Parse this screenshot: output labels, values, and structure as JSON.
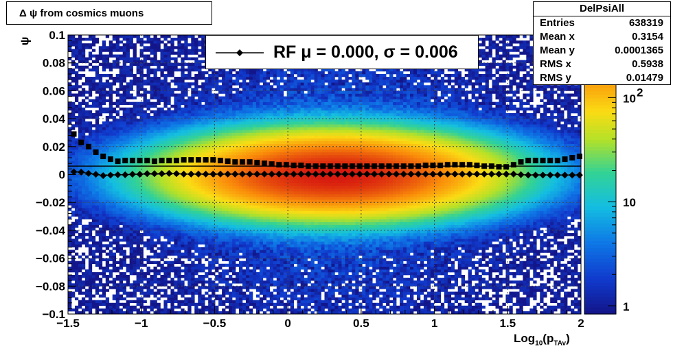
{
  "title_box": {
    "text": "Δ ψ from cosmics muons"
  },
  "stats": {
    "name": "DelPsiAll",
    "rows": [
      {
        "label": "Entries",
        "value": "638319"
      },
      {
        "label": "Mean x",
        "value": "0.3154"
      },
      {
        "label": "Mean y",
        "value": "0.0001365"
      },
      {
        "label": "RMS x",
        "value": "0.5938"
      },
      {
        "label": "RMS y",
        "value": "0.01479"
      }
    ]
  },
  "legend": {
    "text": "RF μ =  0.000, σ =   0.006"
  },
  "chart_data": {
    "type": "heatmap",
    "title": "Δ ψ from cosmics muons",
    "xlabel": "Log10(pTAv)",
    "ylabel": "ψ",
    "xlim": [
      -1.5,
      2
    ],
    "ylim": [
      -0.1,
      0.1
    ],
    "x_ticks": [
      "−1.5",
      "−1",
      "−0.5",
      "0",
      "0.5",
      "1",
      "1.5",
      "2"
    ],
    "x_tick_values": [
      -1.5,
      -1,
      -0.5,
      0,
      0.5,
      1,
      1.5,
      2
    ],
    "y_ticks": [
      "−0.1",
      "−0.08",
      "−0.06",
      "−0.04",
      "−0.02",
      "0",
      "0.02",
      "0.04",
      "0.06",
      "0.08",
      "0.1"
    ],
    "y_tick_values": [
      -0.1,
      -0.08,
      -0.06,
      -0.04,
      -0.02,
      0,
      0.02,
      0.04,
      0.06,
      0.08,
      0.1
    ],
    "grid": true,
    "colorbar": {
      "scale": "log",
      "range": [
        1,
        400
      ],
      "tick_labels": [
        "1",
        "10",
        "10^2"
      ],
      "tick_values": [
        1,
        10,
        100
      ]
    },
    "density": {
      "x_center": 0.3154,
      "y_rms": 0.01479,
      "peak": 400
    },
    "series": [
      {
        "name": "RF",
        "marker": "diamond",
        "x": [
          -1.46,
          -1.41,
          -1.36,
          -1.31,
          -1.26,
          -1.21,
          -1.16,
          -1.11,
          -1.06,
          -1.01,
          -0.96,
          -0.91,
          -0.86,
          -0.81,
          -0.76,
          -0.71,
          -0.66,
          -0.61,
          -0.56,
          -0.51,
          -0.46,
          -0.41,
          -0.36,
          -0.31,
          -0.26,
          -0.21,
          -0.16,
          -0.11,
          -0.06,
          -0.01,
          0.04,
          0.09,
          0.14,
          0.19,
          0.24,
          0.29,
          0.34,
          0.39,
          0.44,
          0.49,
          0.54,
          0.59,
          0.64,
          0.69,
          0.74,
          0.79,
          0.84,
          0.89,
          0.94,
          0.99,
          1.04,
          1.09,
          1.14,
          1.19,
          1.24,
          1.29,
          1.34,
          1.39,
          1.44,
          1.49,
          1.54,
          1.59,
          1.64,
          1.69,
          1.74,
          1.79,
          1.84,
          1.89,
          1.94,
          1.99
        ],
        "y": [
          0.0019,
          0.0017,
          0.0008,
          0.0001,
          -0.0008,
          -0.0004,
          -0.0002,
          -0.0002,
          0.0002,
          0.0002,
          0.0006,
          0.0006,
          0.0006,
          0.0008,
          0.0006,
          0.0003,
          0.0003,
          0.0003,
          0.0003,
          0.0003,
          0.0003,
          0.0003,
          0.0003,
          0.0003,
          0.0003,
          0.0003,
          0.0003,
          0.0003,
          0.0003,
          0.0003,
          0.0003,
          0.0003,
          0.0003,
          0.0003,
          0.0003,
          0.0003,
          0.0003,
          0.0003,
          0.0003,
          0.0003,
          0.0003,
          0.0003,
          0.0003,
          0.0003,
          0.0003,
          0.0003,
          0.0003,
          0.0003,
          0.0003,
          0.0003,
          0.0003,
          0.0003,
          0.0003,
          0.0003,
          0.0003,
          0.0003,
          0.0003,
          0.0003,
          0.0003,
          0.0003,
          0.0003,
          -0.0001,
          -0.0004,
          -0.0004,
          -0.0004,
          -0.0004,
          -0.0004,
          -0.0004,
          -0.0004,
          -0.0004
        ]
      },
      {
        "name": "",
        "marker": "square",
        "x": [
          -1.46,
          -1.41,
          -1.36,
          -1.31,
          -1.26,
          -1.21,
          -1.16,
          -1.11,
          -1.06,
          -1.01,
          -0.96,
          -0.91,
          -0.86,
          -0.81,
          -0.76,
          -0.71,
          -0.66,
          -0.61,
          -0.56,
          -0.51,
          -0.46,
          -0.41,
          -0.36,
          -0.31,
          -0.26,
          -0.21,
          -0.16,
          -0.11,
          -0.06,
          -0.01,
          0.04,
          0.09,
          0.14,
          0.19,
          0.24,
          0.29,
          0.34,
          0.39,
          0.44,
          0.49,
          0.54,
          0.59,
          0.64,
          0.69,
          0.74,
          0.79,
          0.84,
          0.89,
          0.94,
          0.99,
          1.04,
          1.09,
          1.14,
          1.19,
          1.24,
          1.29,
          1.34,
          1.39,
          1.44,
          1.49,
          1.54,
          1.59,
          1.64,
          1.69,
          1.74,
          1.79,
          1.84,
          1.89,
          1.94,
          1.99
        ],
        "y": [
          0.029,
          0.023,
          0.02,
          0.016,
          0.013,
          0.011,
          0.0095,
          0.01,
          0.01,
          0.01,
          0.01,
          0.0095,
          0.01,
          0.01,
          0.01,
          0.0105,
          0.0105,
          0.0105,
          0.0105,
          0.0105,
          0.01,
          0.0095,
          0.009,
          0.009,
          0.009,
          0.0085,
          0.008,
          0.0075,
          0.007,
          0.007,
          0.0065,
          0.0065,
          0.006,
          0.006,
          0.006,
          0.006,
          0.006,
          0.006,
          0.006,
          0.006,
          0.006,
          0.006,
          0.006,
          0.006,
          0.006,
          0.006,
          0.006,
          0.006,
          0.0065,
          0.0065,
          0.0065,
          0.007,
          0.007,
          0.007,
          0.007,
          0.0065,
          0.006,
          0.006,
          0.0055,
          0.0055,
          0.007,
          0.009,
          0.01,
          0.01,
          0.01,
          0.01,
          0.01,
          0.011,
          0.012,
          0.013
        ]
      }
    ],
    "fit_line": {
      "y": 0.006
    }
  }
}
